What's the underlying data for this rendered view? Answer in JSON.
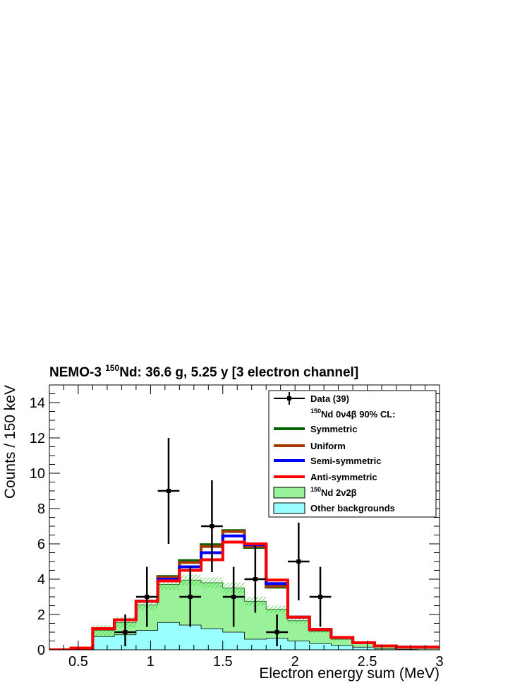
{
  "chart_data": {
    "type": "histogram",
    "title": {
      "prefix": "NEMO-3 ",
      "sup": "150",
      "suffix": "Nd: 36.6 g, 5.25 y [3 electron channel]"
    },
    "xlabel": "Electron energy sum (MeV)",
    "ylabel": "Counts / 150 keV",
    "xlim": [
      0.3,
      3.0
    ],
    "ylim": [
      0,
      15
    ],
    "x_ticks": [
      0.5,
      1,
      1.5,
      2,
      2.5,
      3
    ],
    "x_tick_labels": [
      "0.5",
      "1",
      "1.5",
      "2",
      "2.5",
      "3"
    ],
    "y_ticks": [
      0,
      2,
      4,
      6,
      8,
      10,
      12,
      14
    ],
    "y_tick_labels": [
      "0",
      "2",
      "4",
      "6",
      "8",
      "10",
      "12",
      "14"
    ],
    "bin_edges": [
      0.3,
      0.45,
      0.6,
      0.75,
      0.9,
      1.05,
      1.2,
      1.35,
      1.5,
      1.65,
      1.8,
      1.95,
      2.1,
      2.25,
      2.4,
      2.55,
      2.7,
      2.85,
      3.0
    ],
    "other_backgrounds": [
      0.0,
      0.05,
      0.75,
      0.85,
      1.1,
      1.55,
      1.4,
      1.2,
      1.0,
      0.6,
      0.65,
      0.5,
      0.35,
      0.25,
      0.15,
      0.05,
      0.02,
      0.0
    ],
    "nd_2v2b_total": [
      0.0,
      0.1,
      1.1,
      1.55,
      2.55,
      3.7,
      3.95,
      3.8,
      3.5,
      2.75,
      2.3,
      1.65,
      1.05,
      0.6,
      0.35,
      0.2,
      0.12,
      0.1
    ],
    "nd_2v2b_uncertainty": [
      0.0,
      0.02,
      0.3,
      0.3,
      0.3,
      0.3,
      0.3,
      0.3,
      0.3,
      0.25,
      0.2,
      0.15,
      0.1,
      0.05,
      0.03,
      0.02,
      0.01,
      0.01
    ],
    "series": [
      {
        "name": "Symmetric",
        "color": "#006400",
        "values": [
          0.0,
          0.1,
          1.2,
          1.7,
          2.75,
          4.15,
          5.05,
          5.95,
          6.75,
          5.8,
          3.55,
          1.85,
          1.15,
          0.7,
          0.4,
          0.22,
          0.15,
          0.15
        ]
      },
      {
        "name": "Uniform",
        "color": "#a33a00",
        "values": [
          0.0,
          0.1,
          1.2,
          1.7,
          2.75,
          4.1,
          4.95,
          5.85,
          6.7,
          5.85,
          3.6,
          1.85,
          1.15,
          0.7,
          0.4,
          0.22,
          0.15,
          0.15
        ]
      },
      {
        "name": "Semi-symmetric",
        "color": "#0000ff",
        "values": [
          0.0,
          0.1,
          1.2,
          1.7,
          2.75,
          4.0,
          4.7,
          5.5,
          6.45,
          5.95,
          3.75,
          1.85,
          1.15,
          0.7,
          0.4,
          0.22,
          0.15,
          0.15
        ]
      },
      {
        "name": "Anti-symmetric",
        "color": "#ff0000",
        "values": [
          0.0,
          0.1,
          1.2,
          1.7,
          2.75,
          3.9,
          4.5,
          5.1,
          6.1,
          6.0,
          3.95,
          1.85,
          1.15,
          0.7,
          0.4,
          0.22,
          0.15,
          0.15
        ]
      }
    ],
    "data_points": {
      "x": [
        0.825,
        0.975,
        1.125,
        1.275,
        1.425,
        1.575,
        1.725,
        1.875,
        2.025,
        2.175
      ],
      "y": [
        1,
        3,
        9,
        3,
        7,
        3,
        4,
        1,
        5,
        3
      ],
      "err_low": [
        0.8,
        1.7,
        3.0,
        1.7,
        2.6,
        1.7,
        1.9,
        0.8,
        2.2,
        1.7
      ],
      "err_high": [
        1.0,
        1.7,
        3.0,
        1.7,
        2.6,
        1.7,
        1.9,
        1.0,
        2.2,
        1.7
      ]
    },
    "legend": {
      "placement": "top-right",
      "entries": [
        {
          "key": "data",
          "label": "Data (39)"
        },
        {
          "key": "header",
          "sup": "150",
          "label": "Nd 0ν4β 90% CL:"
        },
        {
          "key": "symmetric",
          "label": "Symmetric"
        },
        {
          "key": "uniform",
          "label": "Uniform"
        },
        {
          "key": "semi",
          "label": "Semi-symmetric"
        },
        {
          "key": "anti",
          "label": "Anti-symmetric"
        },
        {
          "key": "nd2v2b",
          "sup": "150",
          "label": "Nd 2ν2β"
        },
        {
          "key": "other",
          "label": "Other backgrounds"
        }
      ]
    },
    "colors": {
      "nd_2v2b_fill": "#99f299",
      "nd_2v2b_hatch": "#33cc33",
      "other_fill": "#99ffff",
      "data": "#000000"
    }
  }
}
